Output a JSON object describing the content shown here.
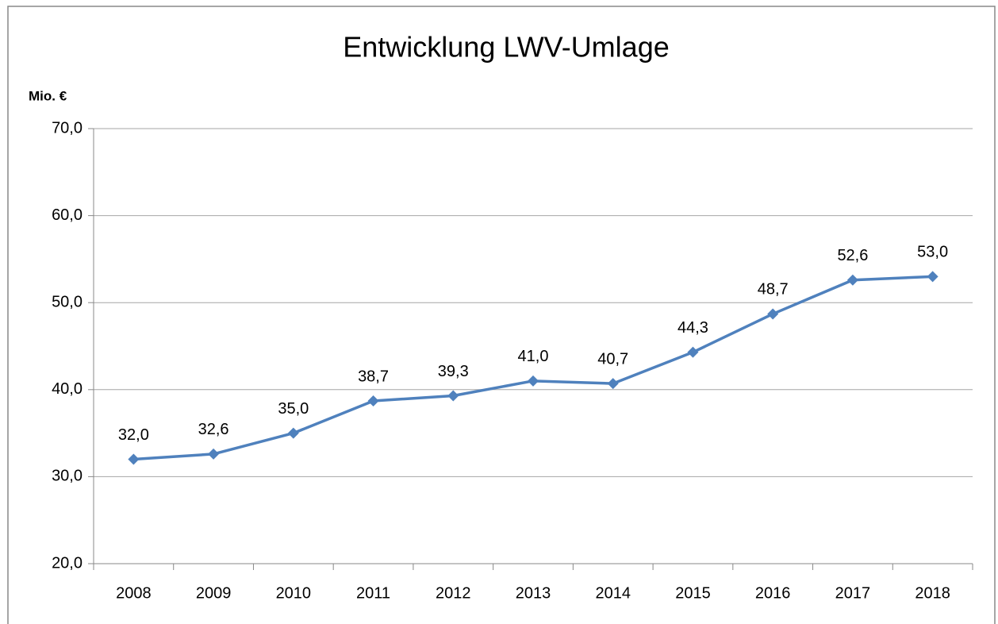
{
  "chart_data": {
    "type": "line",
    "title": "Entwicklung LWV-Umlage",
    "y_label": "Mio. €",
    "categories": [
      "2008",
      "2009",
      "2010",
      "2011",
      "2012",
      "2013",
      "2014",
      "2015",
      "2016",
      "2017",
      "2018"
    ],
    "series": [
      {
        "name": "LWV-Umlage",
        "color": "#4f81bd",
        "values": [
          32.0,
          32.6,
          35.0,
          38.7,
          39.3,
          41.0,
          40.7,
          44.3,
          48.7,
          52.6,
          53.0
        ],
        "value_labels": [
          "32,0",
          "32,6",
          "35,0",
          "38,7",
          "39,3",
          "41,0",
          "40,7",
          "44,3",
          "48,7",
          "52,6",
          "53,0"
        ]
      }
    ],
    "ylim": [
      20,
      70
    ],
    "yticks": [
      {
        "value": 20,
        "label": "20,0"
      },
      {
        "value": 30,
        "label": "30,0"
      },
      {
        "value": 40,
        "label": "40,0"
      },
      {
        "value": 50,
        "label": "50,0"
      },
      {
        "value": 60,
        "label": "60,0"
      },
      {
        "value": 70,
        "label": "70,0"
      }
    ],
    "grid": true
  }
}
